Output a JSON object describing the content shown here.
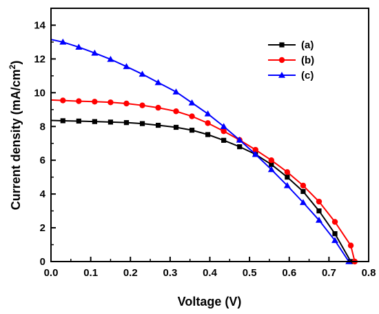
{
  "chart_data": {
    "type": "line",
    "xlabel": "Voltage (V)",
    "ylabel_main": "Current density (mA/cm",
    "ylabel_sup": "2",
    "ylabel_close": ")",
    "xlim": [
      0.0,
      0.8
    ],
    "ylim": [
      0,
      15
    ],
    "xticks": [
      "0.0",
      "0.1",
      "0.2",
      "0.3",
      "0.4",
      "0.5",
      "0.6",
      "0.7",
      "0.8"
    ],
    "yticks": [
      "0",
      "2",
      "4",
      "6",
      "8",
      "10",
      "12",
      "14"
    ],
    "grid": false,
    "legend_position": "top-right",
    "series": [
      {
        "name": "(a)",
        "color": "#000000",
        "marker": "square",
        "x": [
          0.0,
          0.03,
          0.07,
          0.11,
          0.15,
          0.19,
          0.23,
          0.27,
          0.315,
          0.355,
          0.395,
          0.435,
          0.475,
          0.515,
          0.555,
          0.595,
          0.635,
          0.675,
          0.715,
          0.755
        ],
        "y": [
          8.36,
          8.34,
          8.32,
          8.29,
          8.26,
          8.23,
          8.17,
          8.07,
          7.95,
          7.78,
          7.52,
          7.18,
          6.8,
          6.35,
          5.75,
          5.0,
          4.15,
          3.0,
          1.65,
          0.0
        ]
      },
      {
        "name": "(b)",
        "color": "#ff0000",
        "marker": "circle",
        "x": [
          0.0,
          0.03,
          0.07,
          0.11,
          0.15,
          0.19,
          0.23,
          0.27,
          0.315,
          0.355,
          0.395,
          0.435,
          0.475,
          0.515,
          0.555,
          0.595,
          0.635,
          0.675,
          0.715,
          0.755,
          0.765
        ],
        "y": [
          9.57,
          9.54,
          9.5,
          9.47,
          9.43,
          9.36,
          9.25,
          9.11,
          8.9,
          8.6,
          8.2,
          7.72,
          7.2,
          6.62,
          6.0,
          5.3,
          4.5,
          3.55,
          2.35,
          0.95,
          0.0
        ]
      },
      {
        "name": "(c)",
        "color": "#0000ff",
        "marker": "triangle",
        "x": [
          0.0,
          0.03,
          0.07,
          0.11,
          0.15,
          0.19,
          0.23,
          0.27,
          0.315,
          0.355,
          0.395,
          0.435,
          0.475,
          0.515,
          0.555,
          0.595,
          0.635,
          0.675,
          0.715,
          0.75
        ],
        "y": [
          13.15,
          13.0,
          12.7,
          12.35,
          11.98,
          11.55,
          11.1,
          10.6,
          10.05,
          9.4,
          8.75,
          8.0,
          7.2,
          6.35,
          5.45,
          4.5,
          3.5,
          2.45,
          1.25,
          0.0
        ]
      }
    ]
  }
}
